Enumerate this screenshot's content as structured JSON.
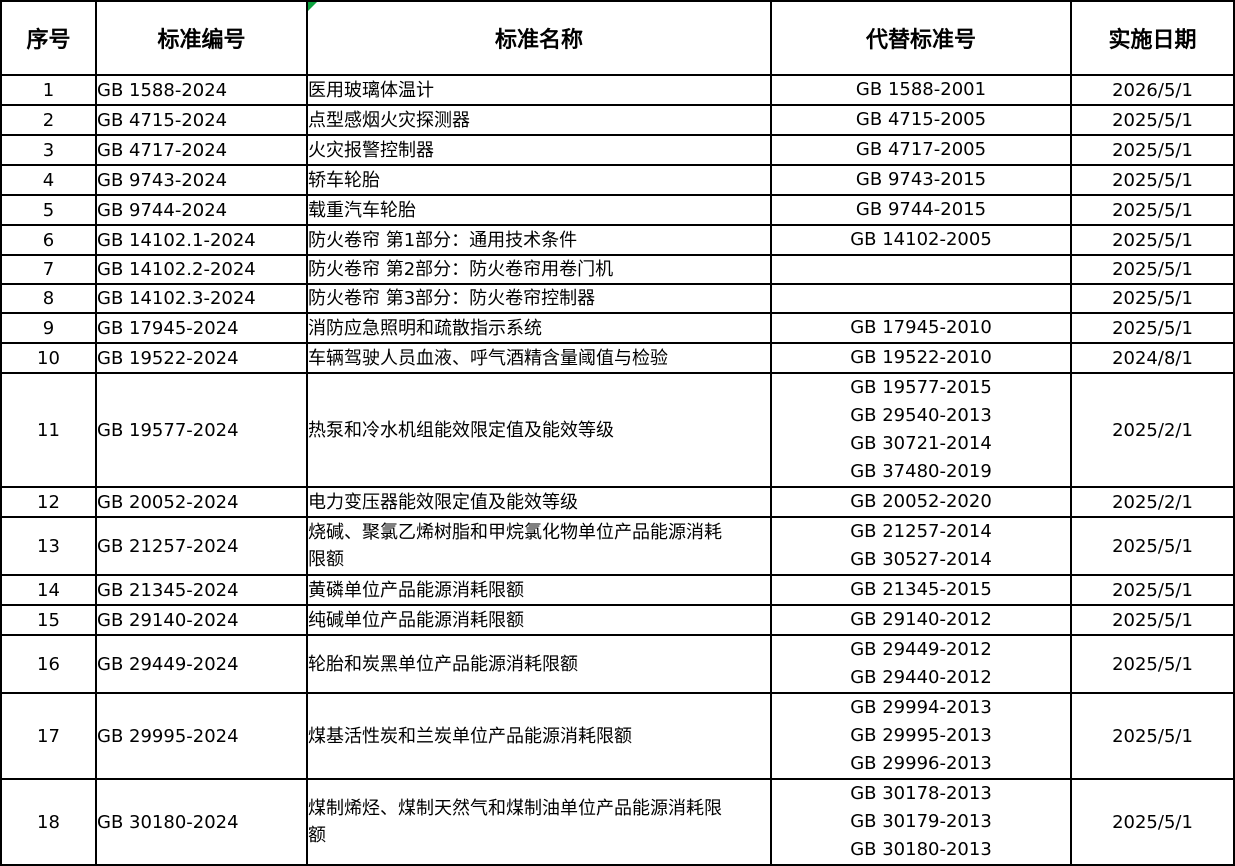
{
  "app": {
    "kind": "spreadsheet-standards-table"
  },
  "colors": {
    "grid": "#000000",
    "background": "#ffffff",
    "text": "#000000",
    "error_indicator_green": "#0CA23E"
  },
  "table": {
    "columns": [
      "序号",
      "标准编号",
      "标准名称",
      "代替标准号",
      "实施日期"
    ],
    "rows": [
      {
        "no": "1",
        "code": "GB 1588-2024",
        "name_lines": [
          "医用玻璃体温计"
        ],
        "replaced": [
          "GB 1588-2001"
        ],
        "date": "2026/5/1"
      },
      {
        "no": "2",
        "code": "GB 4715-2024",
        "name_lines": [
          "点型感烟火灾探测器"
        ],
        "replaced": [
          "GB 4715-2005"
        ],
        "date": "2025/5/1"
      },
      {
        "no": "3",
        "code": "GB 4717-2024",
        "name_lines": [
          "火灾报警控制器"
        ],
        "replaced": [
          "GB 4717-2005"
        ],
        "date": "2025/5/1"
      },
      {
        "no": "4",
        "code": "GB 9743-2024",
        "name_lines": [
          "轿车轮胎"
        ],
        "replaced": [
          "GB 9743-2015"
        ],
        "date": "2025/5/1"
      },
      {
        "no": "5",
        "code": "GB 9744-2024",
        "name_lines": [
          "载重汽车轮胎"
        ],
        "replaced": [
          "GB 9744-2015"
        ],
        "date": "2025/5/1"
      },
      {
        "no": "6",
        "code": "GB 14102.1-2024",
        "name_lines": [
          "防火卷帘 第1部分：通用技术条件"
        ],
        "replaced": [
          "GB 14102-2005"
        ],
        "date": "2025/5/1"
      },
      {
        "no": "7",
        "code": "GB 14102.2-2024",
        "name_lines": [
          "防火卷帘 第2部分：防火卷帘用卷门机"
        ],
        "replaced": [],
        "date": "2025/5/1"
      },
      {
        "no": "8",
        "code": "GB 14102.3-2024",
        "name_lines": [
          "防火卷帘 第3部分：防火卷帘控制器"
        ],
        "replaced": [],
        "date": "2025/5/1"
      },
      {
        "no": "9",
        "code": "GB 17945-2024",
        "name_lines": [
          "消防应急照明和疏散指示系统"
        ],
        "replaced": [
          "GB 17945-2010"
        ],
        "date": "2025/5/1"
      },
      {
        "no": "10",
        "code": "GB 19522-2024",
        "name_lines": [
          "车辆驾驶人员血液、呼气酒精含量阈值与检验"
        ],
        "replaced": [
          "GB 19522-2010"
        ],
        "date": "2024/8/1"
      },
      {
        "no": "11",
        "code": "GB 19577-2024",
        "name_lines": [
          "热泵和冷水机组能效限定值及能效等级"
        ],
        "replaced": [
          "GB 19577-2015",
          "GB 29540-2013",
          "GB 30721-2014",
          "GB 37480-2019"
        ],
        "date": "2025/2/1"
      },
      {
        "no": "12",
        "code": "GB 20052-2024",
        "name_lines": [
          "电力变压器能效限定值及能效等级"
        ],
        "replaced": [
          "GB 20052-2020"
        ],
        "date": "2025/2/1"
      },
      {
        "no": "13",
        "code": "GB 21257-2024",
        "name_lines": [
          "烧碱、聚氯乙烯树脂和甲烷氯化物单位产品能源消耗",
          "限额"
        ],
        "replaced": [
          "GB 21257-2014",
          "GB 30527-2014"
        ],
        "date": "2025/5/1"
      },
      {
        "no": "14",
        "code": "GB 21345-2024",
        "name_lines": [
          "黄磷单位产品能源消耗限额"
        ],
        "replaced": [
          "GB 21345-2015"
        ],
        "date": "2025/5/1"
      },
      {
        "no": "15",
        "code": "GB 29140-2024",
        "name_lines": [
          "纯碱单位产品能源消耗限额"
        ],
        "replaced": [
          "GB 29140-2012"
        ],
        "date": "2025/5/1"
      },
      {
        "no": "16",
        "code": "GB 29449-2024",
        "name_lines": [
          "轮胎和炭黑单位产品能源消耗限额"
        ],
        "replaced": [
          "GB 29449-2012",
          "GB 29440-2012"
        ],
        "date": "2025/5/1"
      },
      {
        "no": "17",
        "code": "GB 29995-2024",
        "name_lines": [
          "煤基活性炭和兰炭单位产品能源消耗限额"
        ],
        "replaced": [
          "GB 29994-2013",
          "GB 29995-2013",
          "GB 29996-2013"
        ],
        "date": "2025/5/1"
      },
      {
        "no": "18",
        "code": "GB 30180-2024",
        "name_lines": [
          "煤制烯烃、煤制天然气和煤制油单位产品能源消耗限",
          "额"
        ],
        "replaced": [
          "GB 30178-2013",
          "GB 30179-2013",
          "GB 30180-2013"
        ],
        "date": "2025/5/1"
      }
    ]
  }
}
